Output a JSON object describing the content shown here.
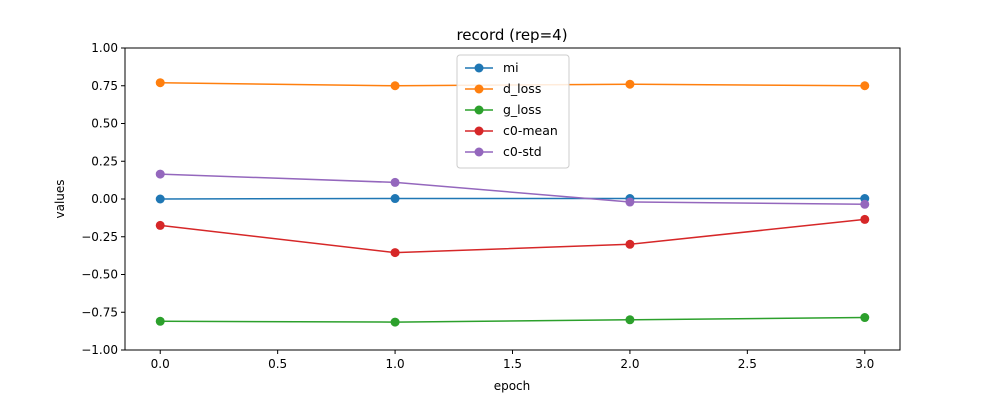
{
  "chart_data": {
    "type": "line",
    "title": "record (rep=4)",
    "xlabel": "epoch",
    "ylabel": "values",
    "xlim": [
      -0.15,
      3.15
    ],
    "ylim": [
      -1.0,
      1.0
    ],
    "xticks": [
      0.0,
      0.5,
      1.0,
      1.5,
      2.0,
      2.5,
      3.0
    ],
    "xtick_labels": [
      "0.0",
      "0.5",
      "1.0",
      "1.5",
      "2.0",
      "2.5",
      "3.0"
    ],
    "yticks": [
      -1.0,
      -0.75,
      -0.5,
      -0.25,
      0.0,
      0.25,
      0.5,
      0.75,
      1.0
    ],
    "ytick_labels": [
      "−1.00",
      "−0.75",
      "−0.50",
      "−0.25",
      "0.00",
      "0.25",
      "0.50",
      "0.75",
      "1.00"
    ],
    "grid": false,
    "legend_position": "top-center",
    "x": [
      0,
      1,
      2,
      3
    ],
    "series": [
      {
        "name": "mi",
        "color": "#1f77b4",
        "values": [
          0.0,
          0.003,
          0.003,
          0.003
        ]
      },
      {
        "name": "d_loss",
        "color": "#ff7f0e",
        "values": [
          0.77,
          0.75,
          0.76,
          0.75
        ]
      },
      {
        "name": "g_loss",
        "color": "#2ca02c",
        "values": [
          -0.81,
          -0.815,
          -0.8,
          -0.785
        ]
      },
      {
        "name": "c0-mean",
        "color": "#d62728",
        "values": [
          -0.175,
          -0.355,
          -0.3,
          -0.135
        ]
      },
      {
        "name": "c0-std",
        "color": "#9467bd",
        "values": [
          0.165,
          0.11,
          -0.02,
          -0.035
        ]
      }
    ]
  }
}
